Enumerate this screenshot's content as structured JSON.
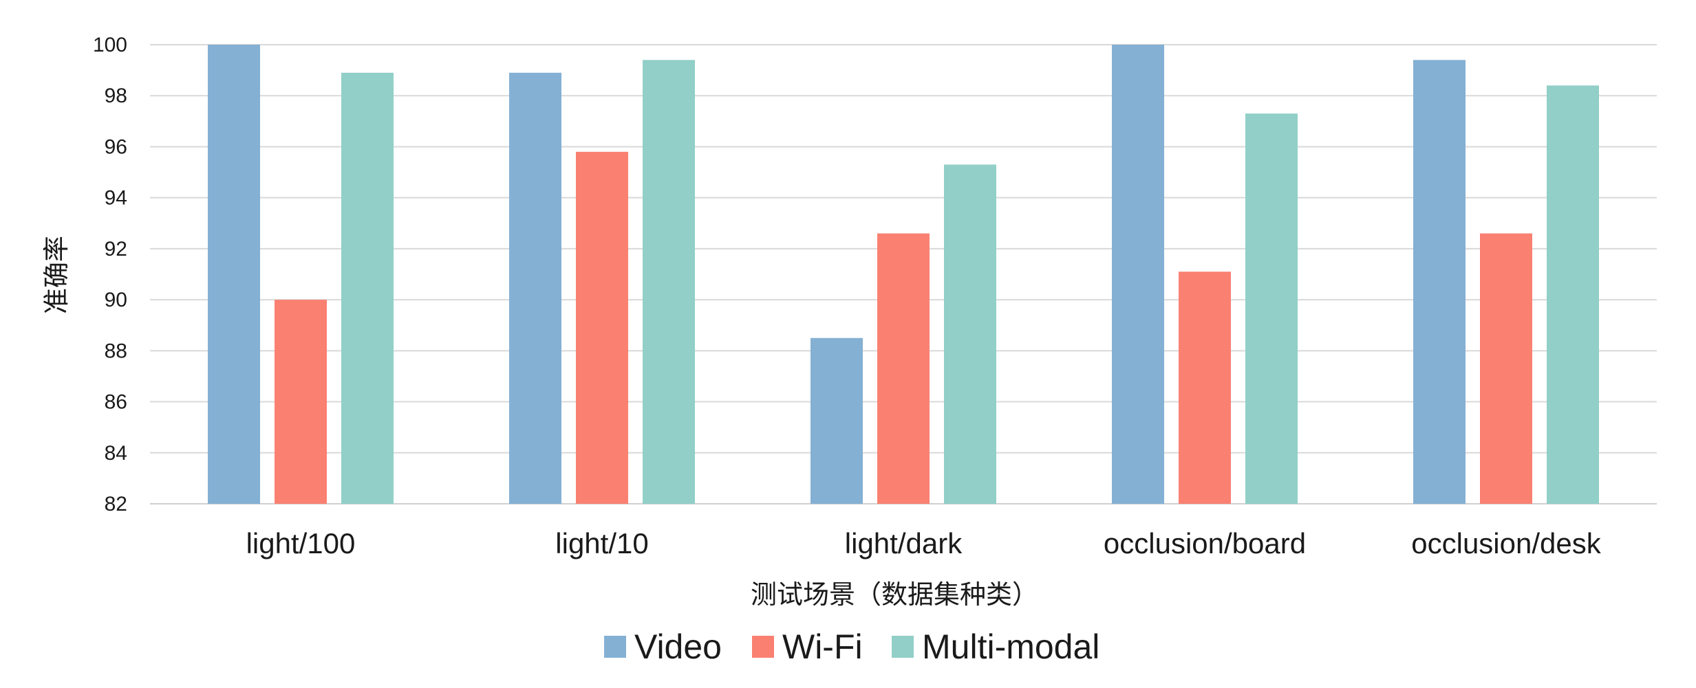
{
  "chart_data": {
    "type": "bar",
    "title": "",
    "xlabel": "测试场景（数据集种类）",
    "ylabel": "准确率",
    "categories": [
      "light/100",
      "light/10",
      "light/dark",
      "occlusion/board",
      "occlusion/desk"
    ],
    "series": [
      {
        "name": "Video",
        "color": "#84b0d3",
        "values": [
          100,
          98.9,
          88.5,
          100,
          99.4
        ]
      },
      {
        "name": "Wi-Fi",
        "color": "#fa8072",
        "values": [
          90.0,
          95.8,
          92.6,
          91.1,
          92.6
        ]
      },
      {
        "name": "Multi-modal",
        "color": "#91cfc8",
        "values": [
          98.9,
          99.4,
          95.3,
          97.3,
          98.4
        ]
      }
    ],
    "ylim": [
      82,
      100
    ],
    "yticks": [
      82,
      84,
      86,
      88,
      90,
      92,
      94,
      96,
      98,
      100
    ],
    "grid": true,
    "legend_position": "bottom"
  }
}
